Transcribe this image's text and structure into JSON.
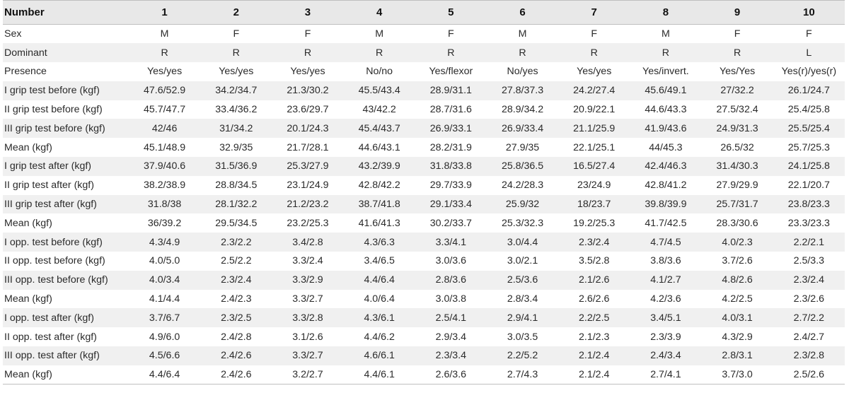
{
  "table": {
    "headers": [
      "Number",
      "1",
      "2",
      "3",
      "4",
      "5",
      "6",
      "7",
      "8",
      "9",
      "10"
    ],
    "rows": [
      [
        "Sex",
        "M",
        "F",
        "F",
        "M",
        "F",
        "M",
        "F",
        "M",
        "F",
        "F"
      ],
      [
        "Dominant",
        "R",
        "R",
        "R",
        "R",
        "R",
        "R",
        "R",
        "R",
        "R",
        "L"
      ],
      [
        "Presence",
        "Yes/yes",
        "Yes/yes",
        "Yes/yes",
        "No/no",
        "Yes/flexor",
        "No/yes",
        "Yes/yes",
        "Yes/invert.",
        "Yes/Yes",
        "Yes(r)/yes(r)"
      ],
      [
        "I grip test before (kgf)",
        "47.6/52.9",
        "34.2/34.7",
        "21.3/30.2",
        "45.5/43.4",
        "28.9/31.1",
        "27.8/37.3",
        "24.2/27.4",
        "45.6/49.1",
        "27/32.2",
        "26.1/24.7"
      ],
      [
        "II grip test before (kgf)",
        "45.7/47.7",
        "33.4/36.2",
        "23.6/29.7",
        "43/42.2",
        "28.7/31.6",
        "28.9/34.2",
        "20.9/22.1",
        "44.6/43.3",
        "27.5/32.4",
        "25.4/25.8"
      ],
      [
        "III grip test before (kgf)",
        "42/46",
        "31/34.2",
        "20.1/24.3",
        "45.4/43.7",
        "26.9/33.1",
        "26.9/33.4",
        "21.1/25.9",
        "41.9/43.6",
        "24.9/31.3",
        "25.5/25.4"
      ],
      [
        "Mean (kgf)",
        "45.1/48.9",
        "32.9/35",
        "21.7/28.1",
        "44.6/43.1",
        "28.2/31.9",
        "27.9/35",
        "22.1/25.1",
        "44/45.3",
        "26.5/32",
        "25.7/25.3"
      ],
      [
        "I grip test after (kgf)",
        "37.9/40.6",
        "31.5/36.9",
        "25.3/27.9",
        "43.2/39.9",
        "31.8/33.8",
        "25.8/36.5",
        "16.5/27.4",
        "42.4/46.3",
        "31.4/30.3",
        "24.1/25.8"
      ],
      [
        "II grip test after (kgf)",
        "38.2/38.9",
        "28.8/34.5",
        "23.1/24.9",
        "42.8/42.2",
        "29.7/33.9",
        "24.2/28.3",
        "23/24.9",
        "42.8/41.2",
        "27.9/29.9",
        "22.1/20.7"
      ],
      [
        "III grip test after (kgf)",
        "31.8/38",
        "28.1/32.2",
        "21.2/23.2",
        "38.7/41.8",
        "29.1/33.4",
        "25.9/32",
        "18/23.7",
        "39.8/39.9",
        "25.7/31.7",
        "23.8/23.3"
      ],
      [
        "Mean (kgf)",
        "36/39.2",
        "29.5/34.5",
        "23.2/25.3",
        "41.6/41.3",
        "30.2/33.7",
        "25.3/32.3",
        "19.2/25.3",
        "41.7/42.5",
        "28.3/30.6",
        "23.3/23.3"
      ],
      [
        "I opp. test before (kgf)",
        "4.3/4.9",
        "2.3/2.2",
        "3.4/2.8",
        "4.3/6.3",
        "3.3/4.1",
        "3.0/4.4",
        "2.3/2.4",
        "4.7/4.5",
        "4.0/2.3",
        "2.2/2.1"
      ],
      [
        "II opp. test before (kgf)",
        "4.0/5.0",
        "2.5/2.2",
        "3.3/2.4",
        "3.4/6.5",
        "3.0/3.6",
        "3.0/2.1",
        "3.5/2.8",
        "3.8/3.6",
        "3.7/2.6",
        "2.5/3.3"
      ],
      [
        "III opp. test before (kgf)",
        "4.0/3.4",
        "2.3/2.4",
        "3.3/2.9",
        "4.4/6.4",
        "2.8/3.6",
        "2.5/3.6",
        "2.1/2.6",
        "4.1/2.7",
        "4.8/2.6",
        "2.3/2.4"
      ],
      [
        "Mean (kgf)",
        "4.1/4.4",
        "2.4/2.3",
        "3.3/2.7",
        "4.0/6.4",
        "3.0/3.8",
        "2.8/3.4",
        "2.6/2.6",
        "4.2/3.6",
        "4.2/2.5",
        "2.3/2.6"
      ],
      [
        "I opp. test after (kgf)",
        "3.7/6.7",
        "2.3/2.5",
        "3.3/2.8",
        "4.3/6.1",
        "2.5/4.1",
        "2.9/4.1",
        "2.2/2.5",
        "3.4/5.1",
        "4.0/3.1",
        "2.7/2.2"
      ],
      [
        "II opp. test after (kgf)",
        "4.9/6.0",
        "2.4/2.8",
        "3.1/2.6",
        "4.4/6.2",
        "2.9/3.4",
        "3.0/3.5",
        "2.1/2.3",
        "2.3/3.9",
        "4.3/2.9",
        "2.4/2.7"
      ],
      [
        "III opp. test after (kgf)",
        "4.5/6.6",
        "2.4/2.6",
        "3.3/2.7",
        "4.6/6.1",
        "2.3/3.4",
        "2.2/5.2",
        "2.1/2.4",
        "2.4/3.4",
        "2.8/3.1",
        "2.3/2.8"
      ],
      [
        "Mean (kgf)",
        "4.4/6.4",
        "2.4/2.6",
        "3.2/2.7",
        "4.4/6.1",
        "2.6/3.6",
        "2.7/4.3",
        "2.1/2.4",
        "2.7/4.1",
        "3.7/3.0",
        "2.5/2.6"
      ]
    ]
  }
}
